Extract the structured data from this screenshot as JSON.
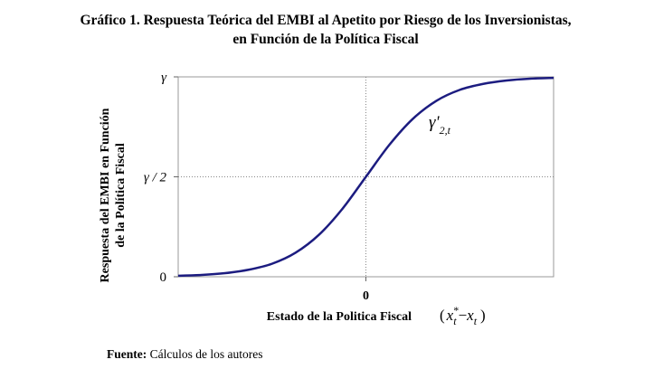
{
  "chart_data": {
    "type": "line",
    "title": [
      "Gráfico 1. Respuesta Teórica del EMBI al Apetito por Riesgo de los Inversionistas,",
      "en Función de la Política Fiscal"
    ],
    "y_label": [
      "Respuesta del EMBI en Función",
      "de la Política Fiscal"
    ],
    "x_label": "Estado de la Politica Fiscal",
    "x_formula": {
      "open": "(",
      "x1": "x",
      "sup": "*",
      "sub1": "t",
      "minus": "−",
      "x2": "x",
      "sub2": "t",
      "close": ")"
    },
    "annotation": {
      "base": "γ'",
      "sub": "2,t"
    },
    "source_label": "Fuente:",
    "source": "Cálculos de los autores",
    "x": [
      -4,
      -3.5,
      -3,
      -2.5,
      -2,
      -1.5,
      -1,
      -0.5,
      0,
      0.5,
      1,
      1.5,
      2,
      2.5,
      3,
      3.5,
      4
    ],
    "series": [
      {
        "color": "#1c1c80",
        "values": [
          0.005,
          0.009,
          0.018,
          0.035,
          0.065,
          0.12,
          0.21,
          0.34,
          0.5,
          0.66,
          0.79,
          0.88,
          0.935,
          0.965,
          0.982,
          0.991,
          0.995
        ]
      }
    ],
    "xlim": [
      -4,
      4
    ],
    "ylim": [
      0,
      1
    ],
    "xticks": [
      0
    ],
    "yticks": [
      0,
      {
        "value": 0.5,
        "label": "γ / 2"
      },
      {
        "value": 1,
        "label": "γ"
      }
    ],
    "grid": true
  }
}
